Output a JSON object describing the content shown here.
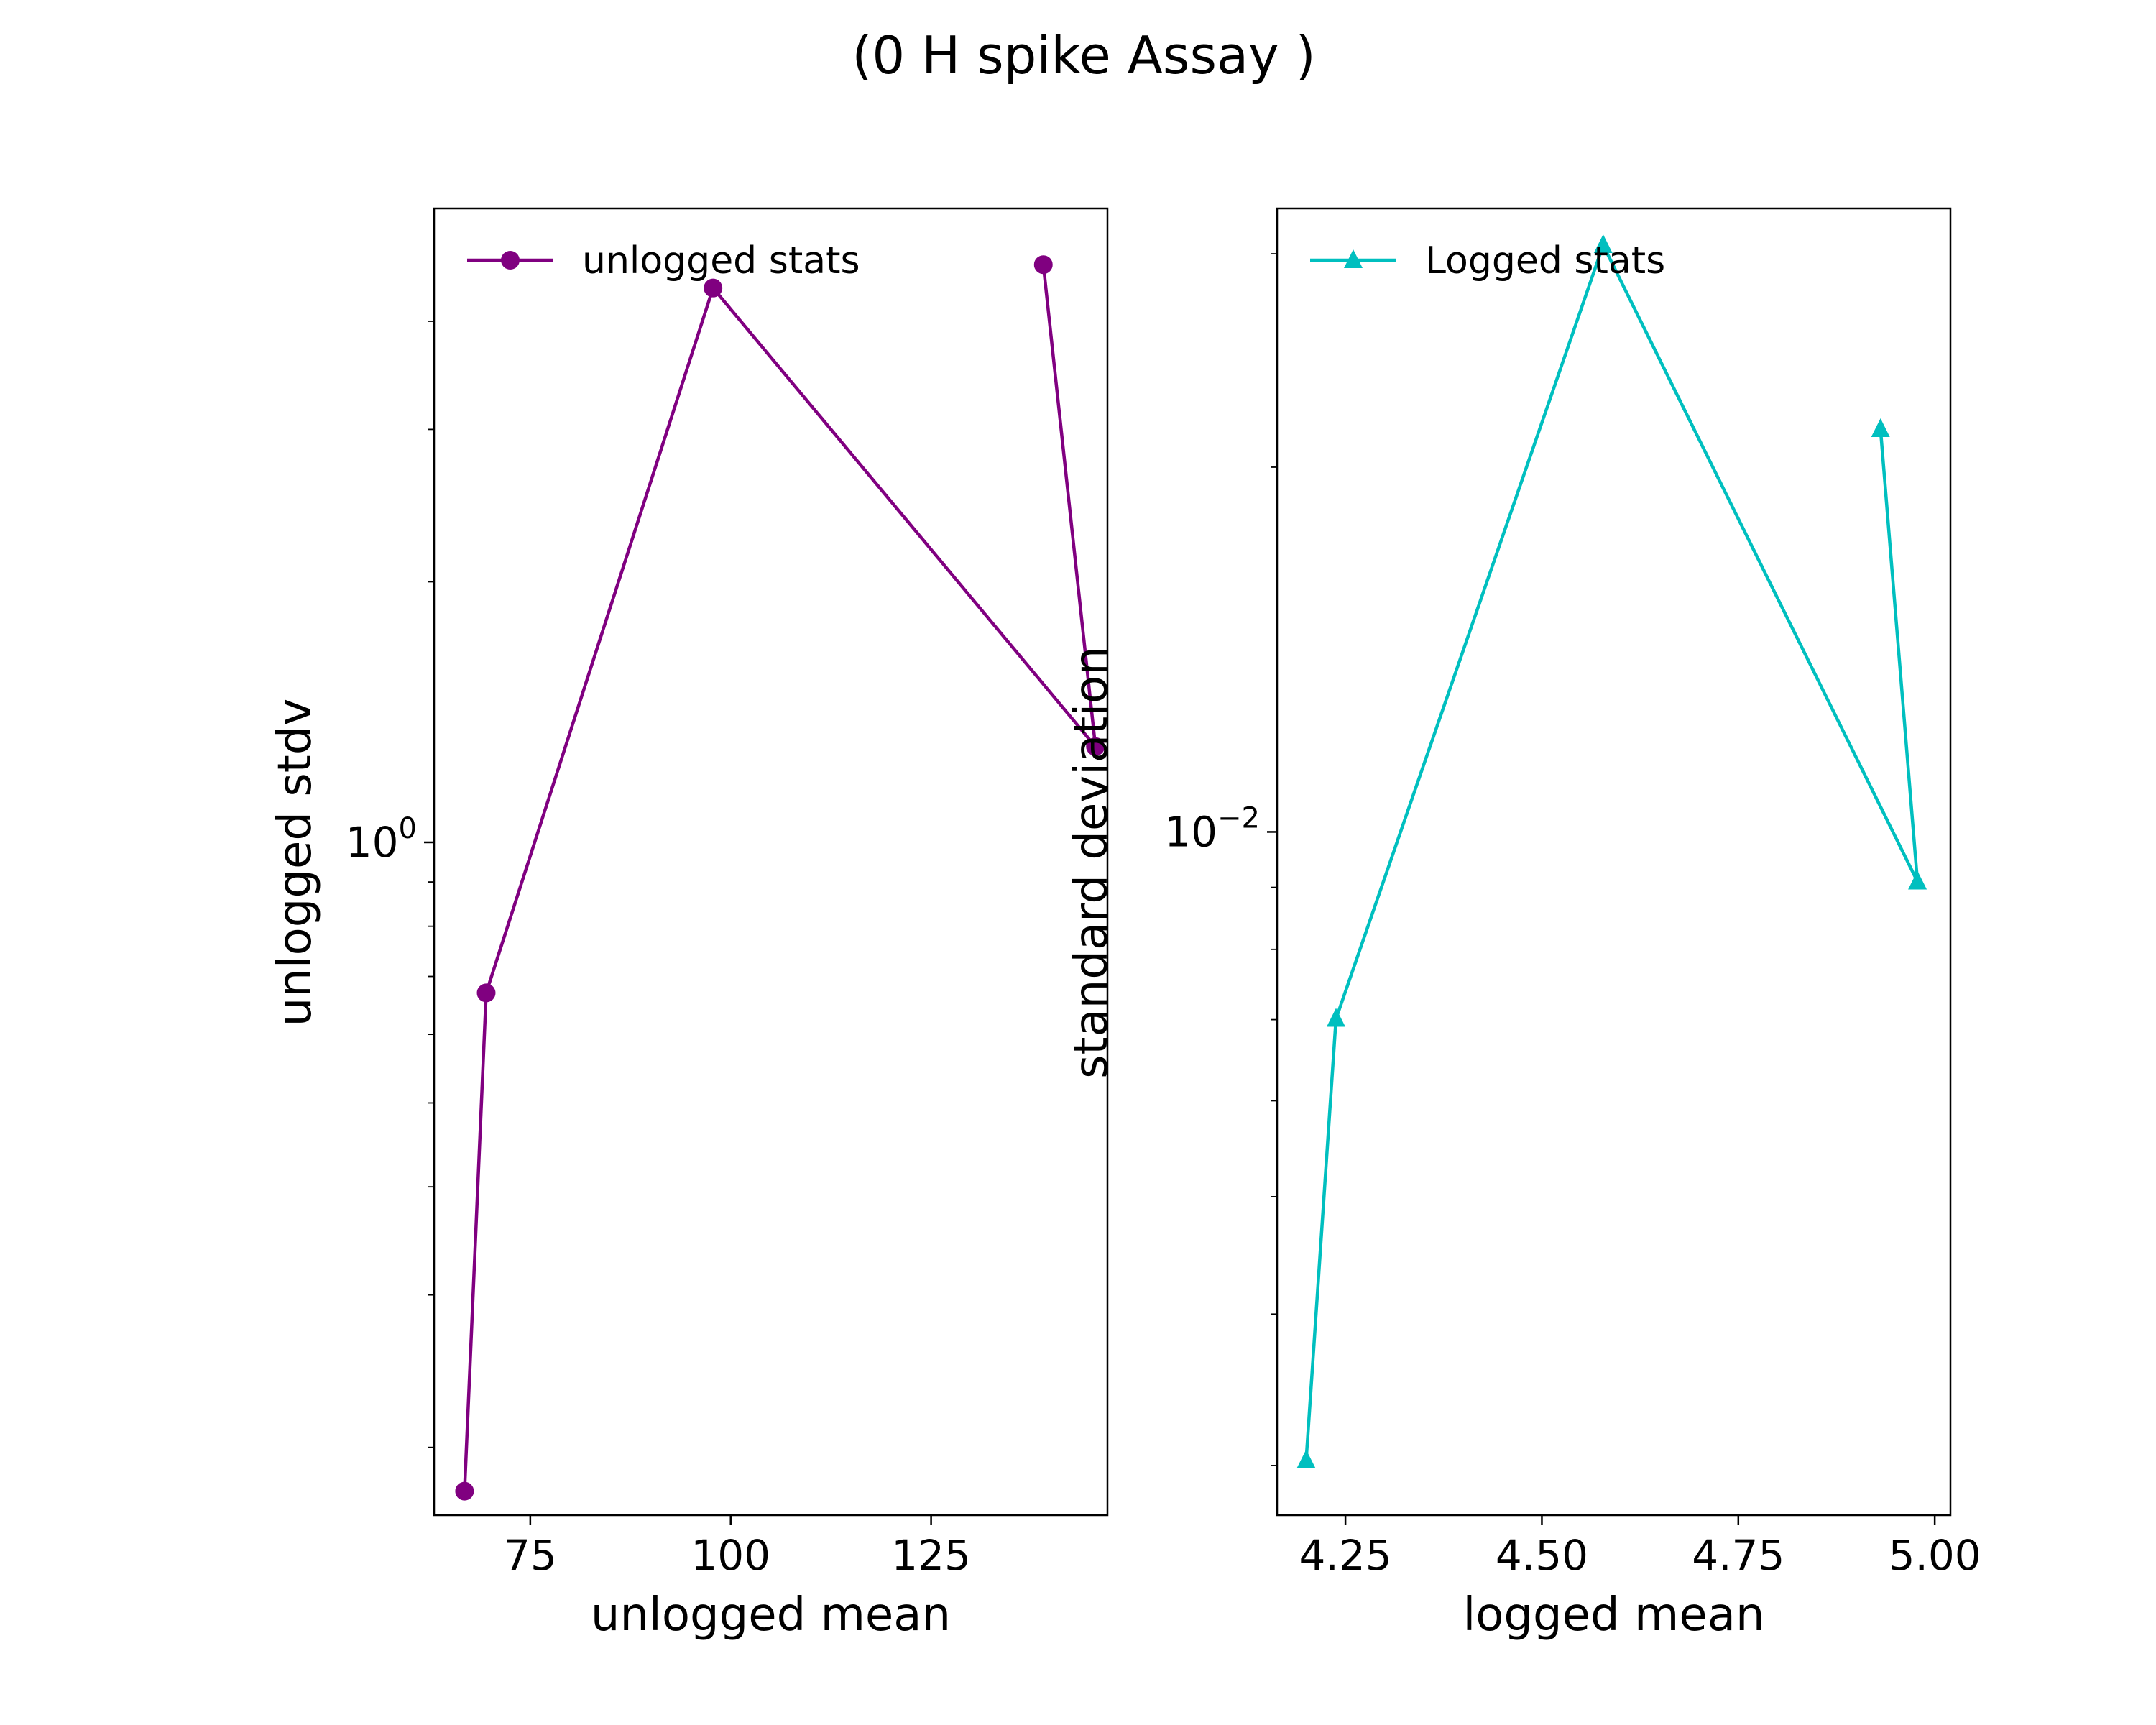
{
  "figure": {
    "title": "(0 H spike Assay )"
  },
  "chart_data": [
    {
      "type": "line",
      "xlabel": "unlogged mean",
      "ylabel": "unlogged stdv",
      "xscale": "linear",
      "yscale": "log",
      "xlim": [
        63,
        147
      ],
      "ylim": [
        0.167,
        5.4
      ],
      "xticks": [
        75,
        100,
        125
      ],
      "xtick_labels": [
        "75",
        "100",
        "125"
      ],
      "yticks_major": [
        1
      ],
      "ytick_major_labels": [
        {
          "base": "10",
          "exp": "0"
        }
      ],
      "yticks_minor": [
        0.2,
        0.3,
        0.4,
        0.5,
        0.6,
        0.7,
        0.8,
        0.9,
        2,
        3,
        4
      ],
      "grid": false,
      "legend_position": "upper-left",
      "series": [
        {
          "name": "unlogged stats",
          "color": "#800080",
          "marker": "circle",
          "x": [
            66.8,
            69.5,
            97.8,
            145.5,
            139.0
          ],
          "y": [
            0.178,
            0.67,
            4.37,
            1.29,
            4.65
          ]
        }
      ]
    },
    {
      "type": "line",
      "xlabel": "logged mean",
      "ylabel": "standard deviation",
      "xscale": "linear",
      "yscale": "log",
      "xlim": [
        4.163,
        5.02
      ],
      "ylim": [
        0.00273,
        0.0327
      ],
      "xticks": [
        4.25,
        4.5,
        4.75,
        5.0
      ],
      "xtick_labels": [
        "4.25",
        "4.50",
        "4.75",
        "5.00"
      ],
      "yticks_major": [
        0.01
      ],
      "ytick_major_labels": [
        {
          "base": "10",
          "exp": "−2"
        }
      ],
      "yticks_minor": [
        0.003,
        0.004,
        0.005,
        0.006,
        0.007,
        0.008,
        0.009,
        0.02,
        0.03
      ],
      "grid": false,
      "legend_position": "upper-left",
      "series": [
        {
          "name": "Logged stats",
          "color": "#00BFBF",
          "marker": "triangle",
          "x": [
            4.2,
            4.238,
            4.578,
            4.978,
            4.931
          ],
          "y": [
            0.00303,
            0.00701,
            0.0305,
            0.0091,
            0.0215
          ]
        }
      ]
    }
  ]
}
